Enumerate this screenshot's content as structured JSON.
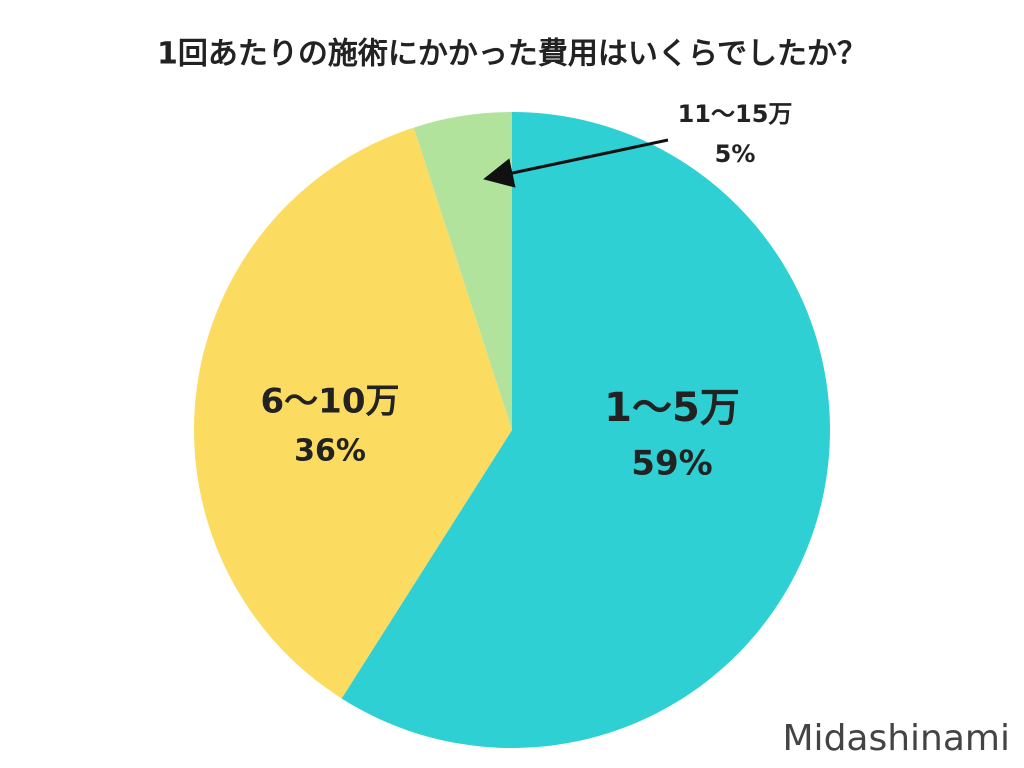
{
  "chart_data": {
    "type": "pie",
    "title": "1回あたりの施術にかかった費用はいくらでしたか？",
    "categories": [
      "1〜5万",
      "6〜10万",
      "11〜15万"
    ],
    "values": [
      59,
      36,
      5
    ],
    "value_labels": [
      "59%",
      "36%",
      "5%"
    ],
    "colors": [
      "#2ed0d4",
      "#fcdc60",
      "#b2e39c"
    ],
    "watermark": "Midashinami"
  }
}
